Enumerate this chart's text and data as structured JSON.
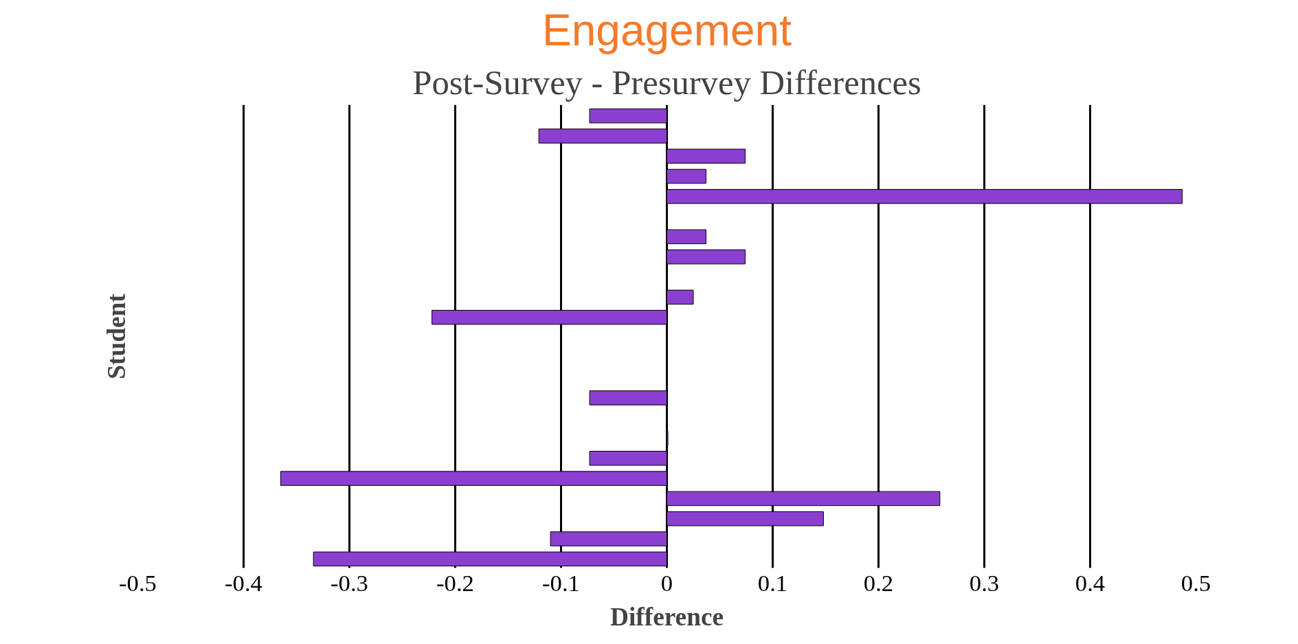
{
  "chart_data": {
    "type": "bar",
    "orientation": "horizontal",
    "title": "Engagement",
    "subtitle": "Post-Survey - Presurvey Differences",
    "xlabel": "Difference",
    "ylabel": "Student",
    "categories": [
      null,
      null,
      null,
      null,
      null,
      null,
      null,
      null,
      null,
      null,
      null,
      null,
      null,
      null,
      null,
      null,
      null,
      null,
      null,
      null,
      null,
      null,
      null
    ],
    "values": [
      -0.073,
      -0.121,
      0.074,
      0.037,
      0.487,
      null,
      0.037,
      0.074,
      null,
      0.025,
      -0.222,
      null,
      null,
      null,
      -0.073,
      null,
      0.001,
      -0.073,
      -0.365,
      0.258,
      0.148,
      -0.11,
      -0.334
    ],
    "color": "#8b3fd1",
    "xlim": [
      -0.5,
      0.5
    ],
    "xticks": [
      -0.5,
      -0.4,
      -0.3,
      -0.2,
      -0.1,
      0,
      0.1,
      0.2,
      0.3,
      0.4,
      0.5
    ],
    "grid": "x",
    "tick_labels": "x"
  }
}
